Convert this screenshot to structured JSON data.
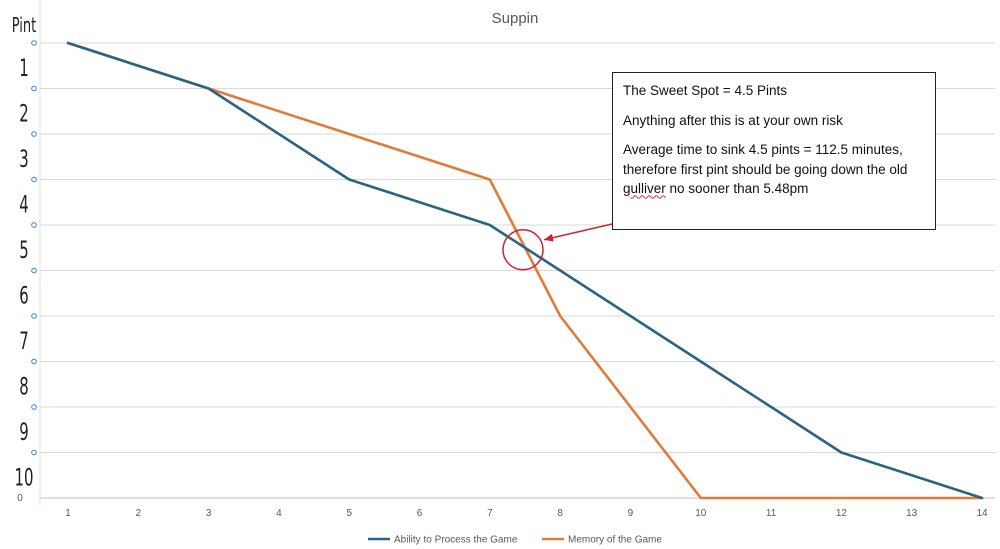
{
  "chart_data": {
    "type": "line",
    "title": "",
    "subtitle": "Suppin",
    "xlabel": "",
    "ylabel": "",
    "x_ticks": [
      1,
      2,
      3,
      4,
      5,
      6,
      7,
      8,
      9,
      10,
      11,
      12,
      13,
      14
    ],
    "x_range": [
      1,
      14
    ],
    "y_range": [
      0,
      10
    ],
    "y_axis_zero_label": "0",
    "y_axis_title": "Pint",
    "y_axis_labels": [
      "1",
      "2",
      "3",
      "4",
      "5",
      "6",
      "7",
      "8",
      "9",
      "10"
    ],
    "grid": true,
    "legend_position": "bottom",
    "series": [
      {
        "name": "Ability to Process the Game",
        "color": "#2a6482",
        "x": [
          1,
          3,
          5,
          7,
          8,
          10,
          12,
          14
        ],
        "y": [
          10,
          9,
          7,
          6,
          5,
          3,
          1,
          0
        ]
      },
      {
        "name": "Memory of the Game",
        "color": "#e07b39",
        "x": [
          1,
          3,
          5,
          7,
          8,
          10,
          12,
          14
        ],
        "y": [
          10,
          9,
          8,
          7,
          4,
          0,
          0,
          0
        ]
      }
    ],
    "annotation": {
      "lines": [
        "The Sweet Spot = 4.5 Pints",
        "Anything after this is at your own risk",
        "Average time to sink 4.5 pints = 112.5 minutes, therefore first pint should be going down the old ",
        "gulliver",
        " no sooner than 5.48pm"
      ],
      "target_x": 7.5,
      "target_y": 5.5,
      "circle_color": "#cc2233",
      "arrow_color": "#cc2233"
    }
  }
}
